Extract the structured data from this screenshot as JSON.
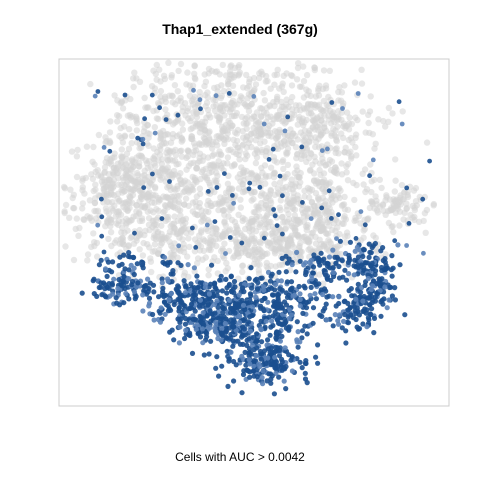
{
  "chart_data": {
    "type": "scatter",
    "title": "Thap1_extended (367g)",
    "xlabel": "Cells with AUC > 0.0042",
    "ylabel": "",
    "grid": false,
    "legend": "none",
    "axes_ticks": false,
    "colors": {
      "background_cells": "#d3d3d3",
      "positive_cells": "#1b4f8f",
      "positive_cells_light": "#5a82b8",
      "frame": "#cccccc"
    },
    "series": [
      {
        "name": "",
        "color": "#d3d3d3",
        "description_key": "cells_below_threshold"
      },
      {
        "name": "",
        "color": "#1b4f8f",
        "description_key": "cells_above_threshold"
      }
    ]
  }
}
